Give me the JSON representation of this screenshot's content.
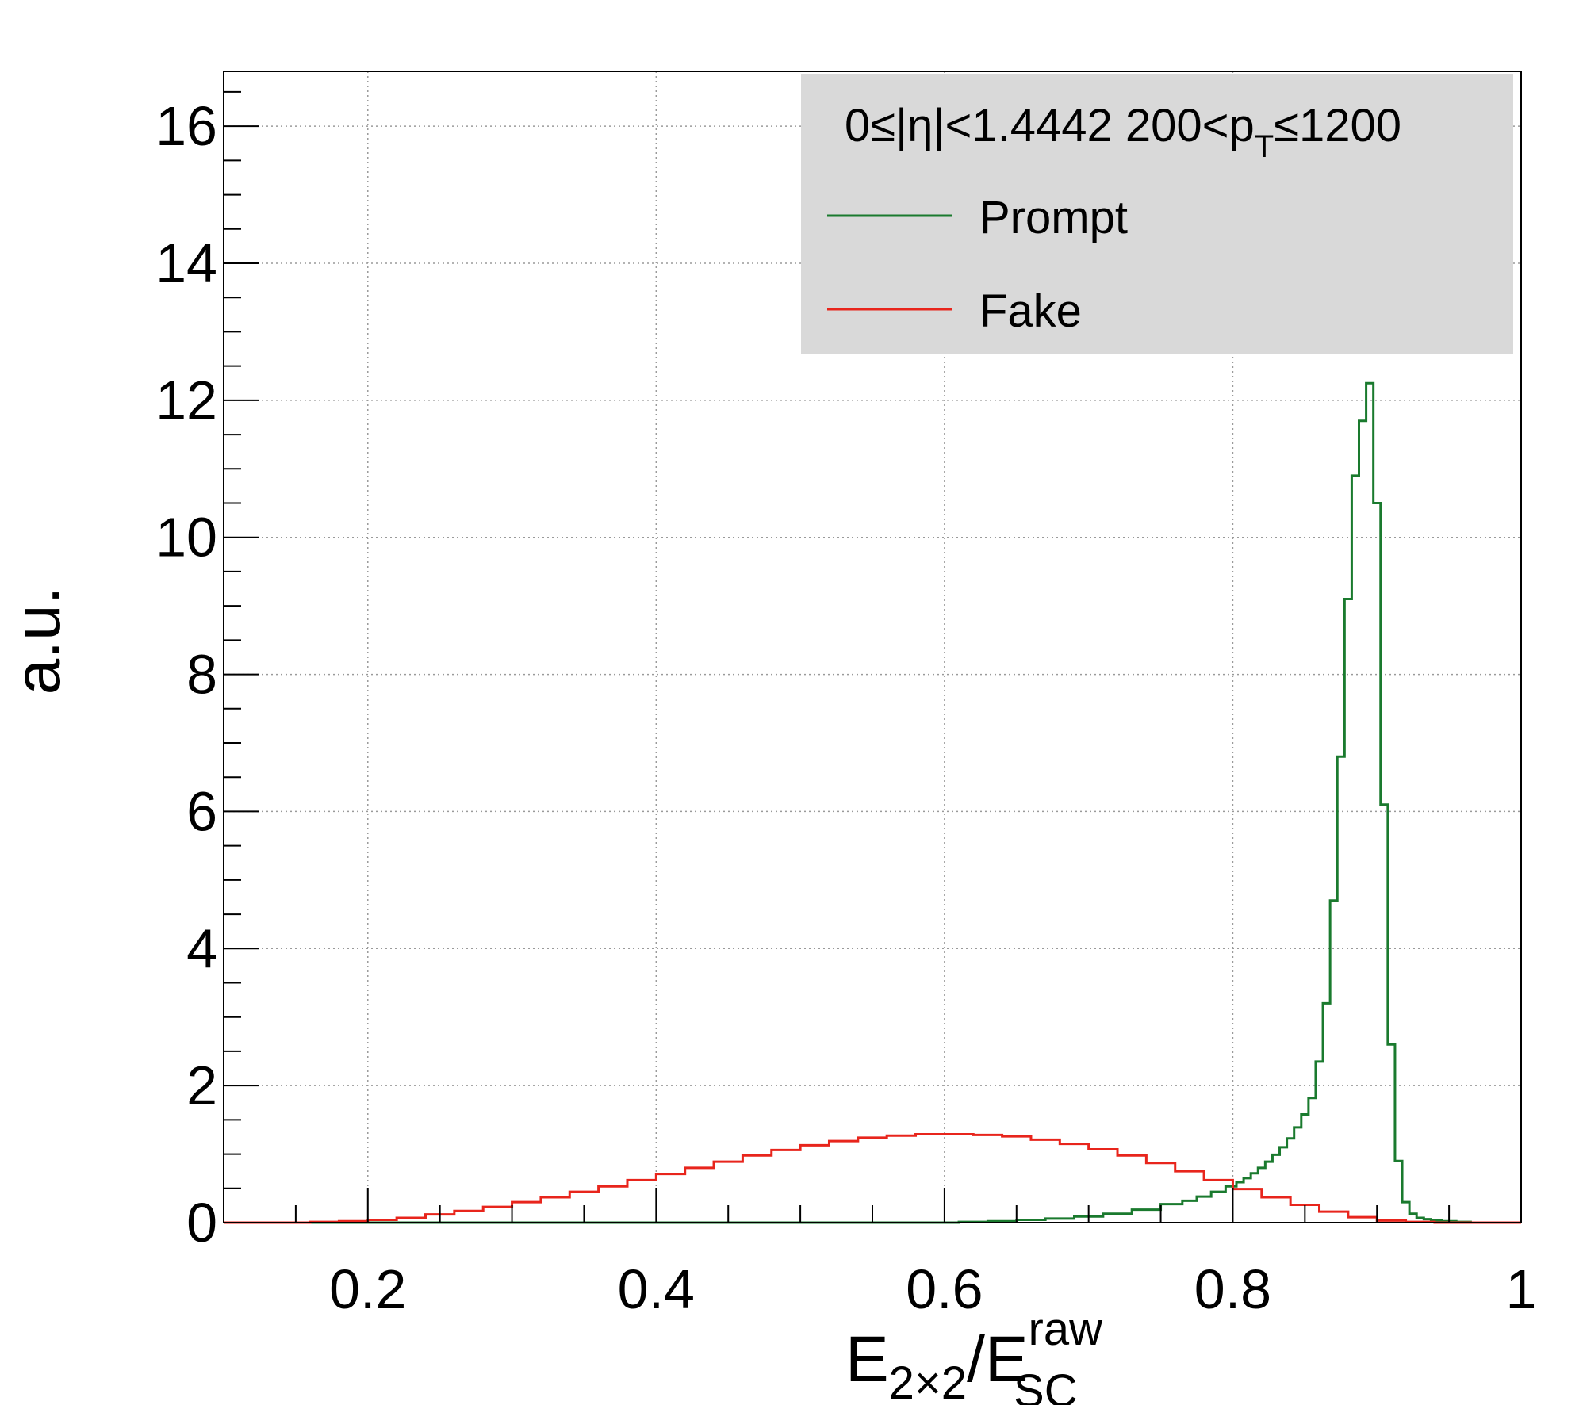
{
  "chart_data": {
    "type": "line",
    "xlim": [
      0.1,
      1.0
    ],
    "ylim": [
      0,
      16.8
    ],
    "x_ticks": [
      0.2,
      0.4,
      0.6,
      0.8,
      1.0
    ],
    "x_tick_labels": [
      "0.2",
      "0.4",
      "0.6",
      "0.8",
      "1"
    ],
    "y_ticks": [
      0,
      2,
      4,
      6,
      8,
      10,
      12,
      14,
      16
    ],
    "y_tick_labels": [
      "0",
      "2",
      "4",
      "6",
      "8",
      "10",
      "12",
      "14",
      "16"
    ],
    "ylabel": "a.u.",
    "xlabel": {
      "main": "E",
      "sub1": "2×2",
      "slash": "/E",
      "sup": "raw",
      "sub2": "SC"
    },
    "grid": true,
    "legend": {
      "position": "top-right",
      "header": {
        "part1": "0≤|η|<1.4442  200<p",
        "sub": "T",
        "part2": "≤1200"
      }
    },
    "series": [
      {
        "name": "Prompt",
        "color": "#1a7a2e",
        "x": [
          0.6,
          0.62,
          0.64,
          0.66,
          0.68,
          0.7,
          0.72,
          0.74,
          0.76,
          0.77,
          0.78,
          0.79,
          0.8,
          0.805,
          0.81,
          0.815,
          0.82,
          0.825,
          0.83,
          0.835,
          0.84,
          0.845,
          0.85,
          0.855,
          0.86,
          0.865,
          0.87,
          0.875,
          0.88,
          0.885,
          0.89,
          0.895,
          0.9,
          0.905,
          0.91,
          0.915,
          0.92,
          0.925,
          0.93,
          0.935,
          0.94,
          0.95,
          0.96,
          0.97,
          0.98,
          0.99
        ],
        "values": [
          0.0,
          0.01,
          0.02,
          0.04,
          0.06,
          0.09,
          0.13,
          0.19,
          0.27,
          0.32,
          0.38,
          0.45,
          0.53,
          0.59,
          0.65,
          0.72,
          0.8,
          0.89,
          0.99,
          1.1,
          1.23,
          1.39,
          1.58,
          1.82,
          2.35,
          3.2,
          4.7,
          6.8,
          9.1,
          10.9,
          11.7,
          12.25,
          10.5,
          6.1,
          2.6,
          0.9,
          0.3,
          0.13,
          0.07,
          0.05,
          0.03,
          0.02,
          0.01,
          0.0,
          0.0,
          0.0
        ]
      },
      {
        "name": "Fake",
        "color": "#e8251c",
        "x": [
          0.15,
          0.17,
          0.19,
          0.21,
          0.23,
          0.25,
          0.27,
          0.29,
          0.31,
          0.33,
          0.35,
          0.37,
          0.39,
          0.41,
          0.43,
          0.45,
          0.47,
          0.49,
          0.51,
          0.53,
          0.55,
          0.57,
          0.59,
          0.61,
          0.63,
          0.65,
          0.67,
          0.69,
          0.71,
          0.73,
          0.75,
          0.77,
          0.79,
          0.81,
          0.83,
          0.85,
          0.87,
          0.89,
          0.91,
          0.93,
          0.95,
          0.97,
          0.99
        ],
        "values": [
          0.0,
          0.01,
          0.02,
          0.04,
          0.07,
          0.12,
          0.17,
          0.23,
          0.3,
          0.37,
          0.45,
          0.53,
          0.62,
          0.71,
          0.8,
          0.89,
          0.98,
          1.06,
          1.13,
          1.19,
          1.24,
          1.27,
          1.29,
          1.29,
          1.28,
          1.26,
          1.21,
          1.15,
          1.07,
          0.98,
          0.87,
          0.75,
          0.62,
          0.49,
          0.37,
          0.26,
          0.16,
          0.08,
          0.03,
          0.01,
          0.0,
          0.0,
          0.0
        ]
      }
    ]
  }
}
